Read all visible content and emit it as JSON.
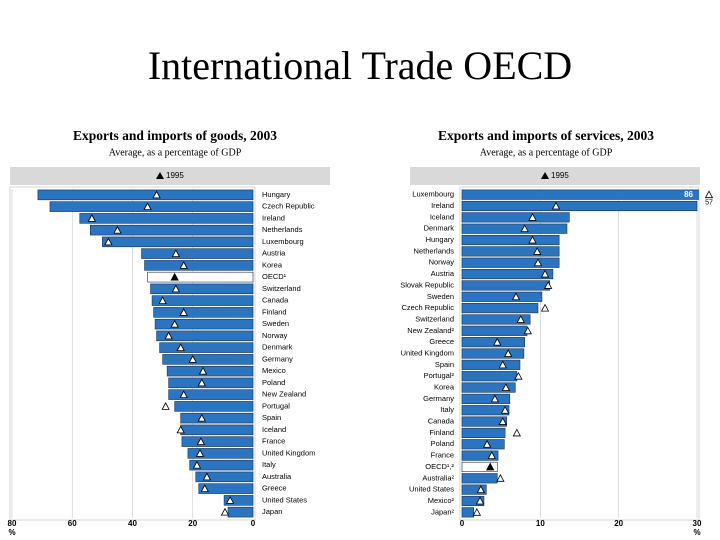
{
  "title": "International Trade OECD",
  "chart_data": [
    {
      "type": "bar",
      "orientation": "horizontal",
      "title": "Exports and imports of goods, 2003",
      "subtitle": "Average, as a percentage of GDP",
      "categories": [
        "Hungary",
        "Czech Republic",
        "Ireland",
        "Netherlands",
        "Luxembourg",
        "Austria",
        "Korea",
        "OECD¹",
        "Switzerland",
        "Canada",
        "Finland",
        "Sweden",
        "Norway",
        "Denmark",
        "Germany",
        "Mexico",
        "Poland",
        "New Zealand",
        "Portugal",
        "Spain",
        "Iceland",
        "France",
        "United Kingdom",
        "Italy",
        "Australia",
        "Greece",
        "United States",
        "Japan"
      ],
      "series": [
        {
          "color": "#2b74c0",
          "highlight": {
            "index": 7,
            "color": "#ffffff"
          },
          "values": [
            71.4,
            67.4,
            57.5,
            54,
            50,
            37,
            36,
            35,
            34,
            33.5,
            33,
            32.5,
            32,
            31,
            30,
            28.5,
            28,
            28,
            26,
            24,
            24,
            23.6,
            21.6,
            21,
            19,
            18,
            9.6,
            8.3
          ]
        },
        {
          "name": "1995",
          "marker": "triangle",
          "color": "#ffffff",
          "values": [
            32,
            35,
            53.5,
            45,
            48,
            25.6,
            23,
            26,
            25.6,
            30,
            23,
            26,
            28,
            24,
            20,
            16.6,
            17,
            23,
            29,
            17,
            24,
            17.3,
            17.6,
            18.6,
            15.3,
            16,
            7.6,
            9.3
          ]
        }
      ],
      "xlim": [
        80,
        0
      ],
      "xticks": [
        80,
        60,
        40,
        20,
        0
      ],
      "x_unit": "%",
      "grid": true
    },
    {
      "type": "bar",
      "orientation": "horizontal",
      "title": "Exports and imports of services, 2003",
      "subtitle": "Average, as a percentage of GDP",
      "categories": [
        "Luxembourg",
        "Ireland",
        "Iceland",
        "Denmark",
        "Hungary",
        "Netherlands",
        "Norway",
        "Austria",
        "Slovak Republic",
        "Sweden",
        "Czech Republic",
        "Switzerland",
        "New Zealand²",
        "Greece",
        "United Kingdom",
        "Spain",
        "Portugal²",
        "Korea",
        "Germany",
        "Italy",
        "Canada",
        "Finland",
        "Poland",
        "France",
        "OECD¹,²",
        "Australia²",
        "United States",
        "Mexico²",
        "Japan²"
      ],
      "series": [
        {
          "color": "#2b74c0",
          "highlight": {
            "index": 24,
            "color": "#ffffff"
          },
          "values": [
            86,
            30,
            13.7,
            13.4,
            12.4,
            12.4,
            12.4,
            11.6,
            11.2,
            10.2,
            9.7,
            8.7,
            8.3,
            8,
            7.9,
            7.4,
            7,
            6.8,
            6.1,
            6,
            5.7,
            5.5,
            5.4,
            4.6,
            4.5,
            4.5,
            3.1,
            2.8,
            1.5
          ],
          "value_labels": [
            "86",
            null,
            null,
            null,
            null,
            null,
            null,
            null,
            null,
            null,
            null,
            null,
            null,
            null,
            null,
            null,
            null,
            null,
            null,
            null,
            null,
            null,
            null,
            null,
            null,
            null,
            null,
            null,
            null
          ]
        },
        {
          "name": "1995",
          "marker": "triangle",
          "color": "#ffffff",
          "values": [
            57,
            12,
            9,
            8,
            9,
            9.6,
            9.7,
            10.6,
            11,
            6.9,
            10.6,
            7.5,
            8.4,
            4.5,
            5.9,
            5.2,
            7.2,
            5.6,
            4.2,
            5.5,
            5.2,
            7,
            3.2,
            3.8,
            3.6,
            4.9,
            2.4,
            2.3,
            1.9
          ],
          "value_labels": [
            "57",
            null,
            null,
            null,
            null,
            null,
            null,
            null,
            null,
            null,
            null,
            null,
            null,
            null,
            null,
            null,
            null,
            null,
            null,
            null,
            null,
            null,
            null,
            null,
            null,
            null,
            null,
            null,
            null
          ]
        }
      ],
      "xlim": [
        0,
        30
      ],
      "xticks": [
        0,
        10,
        20,
        30
      ],
      "x_unit": "%",
      "grid": true
    }
  ]
}
